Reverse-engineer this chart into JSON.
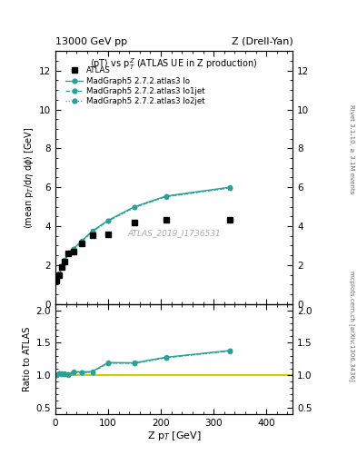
{
  "title_left": "13000 GeV pp",
  "title_right": "Z (Drell-Yan)",
  "plot_title": "<pT> vs p$_{T}^{Z}$ (ATLAS UE in Z production)",
  "xlabel": "Z p$_{T}$ [GeV]",
  "ylabel_main": "<mean p$_{T}$/dη dφ> [GeV]",
  "ylabel_ratio": "Ratio to ATLAS",
  "watermark": "ATLAS_2019_I1736531",
  "right_label_top": "Rivet 3.1.10, ≥ 3.1M events",
  "right_label_bottom": "mcplots.cern.ch [arXiv:1306.3436]",
  "atlas_x": [
    2.5,
    7.5,
    12.5,
    17.5,
    25,
    35,
    50,
    70,
    100,
    150,
    210,
    330
  ],
  "atlas_y": [
    1.2,
    1.5,
    1.9,
    2.2,
    2.6,
    2.7,
    3.1,
    3.55,
    3.6,
    4.2,
    4.35,
    4.35
  ],
  "mg5_lo_x": [
    2.5,
    7.5,
    12.5,
    17.5,
    25,
    35,
    50,
    70,
    100,
    150,
    210,
    330
  ],
  "mg5_lo_y": [
    1.2,
    1.55,
    1.95,
    2.25,
    2.65,
    2.85,
    3.25,
    3.75,
    4.3,
    5.0,
    5.55,
    6.0
  ],
  "mg5_lo1jet_x": [
    2.5,
    7.5,
    12.5,
    17.5,
    25,
    35,
    50,
    70,
    100,
    150,
    210,
    330
  ],
  "mg5_lo1jet_y": [
    1.2,
    1.55,
    1.93,
    2.23,
    2.62,
    2.82,
    3.22,
    3.72,
    4.27,
    4.97,
    5.52,
    5.97
  ],
  "mg5_lo2jet_x": [
    2.5,
    7.5,
    12.5,
    17.5,
    25,
    35,
    50,
    70,
    100,
    150,
    210,
    330
  ],
  "mg5_lo2jet_y": [
    1.2,
    1.54,
    1.92,
    2.22,
    2.61,
    2.81,
    3.21,
    3.71,
    4.26,
    4.96,
    5.51,
    5.96
  ],
  "ratio_lo_y": [
    1.0,
    1.03,
    1.026,
    1.023,
    1.019,
    1.056,
    1.048,
    1.056,
    1.194,
    1.19,
    1.276,
    1.379
  ],
  "ratio_lo1jet_y": [
    1.0,
    1.033,
    1.016,
    1.014,
    1.008,
    1.044,
    1.038,
    1.048,
    1.186,
    1.183,
    1.269,
    1.373
  ],
  "ratio_lo2jet_y": [
    1.0,
    1.027,
    1.011,
    1.009,
    1.004,
    1.041,
    1.035,
    1.045,
    1.183,
    1.181,
    1.267,
    1.371
  ],
  "color_lo": "#2aa198",
  "xlim": [
    0,
    450
  ],
  "ylim_main": [
    0,
    13
  ],
  "ylim_ratio": [
    0.4,
    2.1
  ],
  "yticks_main": [
    0,
    2,
    4,
    6,
    8,
    10,
    12
  ],
  "yticks_ratio": [
    0.5,
    1.0,
    1.5,
    2.0
  ],
  "xticks": [
    0,
    100,
    200,
    300,
    400
  ]
}
